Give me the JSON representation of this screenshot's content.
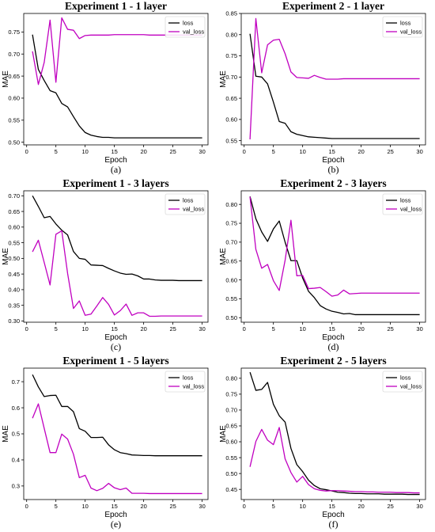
{
  "chart_data": [
    {
      "type": "line",
      "title": "Experiment 1 - 1 layer",
      "xlabel": "Epoch",
      "ylabel": "MAE",
      "caption": "(a)",
      "x_ticks": [
        0,
        5,
        10,
        15,
        20,
        25,
        30
      ],
      "y_ticks": [
        0.5,
        0.55,
        0.6,
        0.65,
        0.7,
        0.75
      ],
      "y_tick_labels": [
        "0.50",
        "0.55",
        "0.60",
        "0.65",
        "0.70",
        "0.75"
      ],
      "xlim": [
        -0.5,
        31
      ],
      "ylim": [
        0.494,
        0.792
      ],
      "legend_position": "top-right",
      "x": [
        1,
        2,
        3,
        4,
        5,
        6,
        7,
        8,
        9,
        10,
        11,
        12,
        13,
        14,
        15,
        16,
        17,
        18,
        19,
        20,
        21,
        22,
        23,
        24,
        25,
        26,
        27,
        28,
        29,
        30
      ],
      "series": [
        {
          "name": "loss",
          "color": "#000000",
          "values": [
            0.744,
            0.665,
            0.64,
            0.617,
            0.612,
            0.588,
            0.58,
            0.558,
            0.537,
            0.522,
            0.516,
            0.513,
            0.511,
            0.511,
            0.51,
            0.51,
            0.51,
            0.51,
            0.51,
            0.51,
            0.51,
            0.51,
            0.51,
            0.51,
            0.51,
            0.51,
            0.51,
            0.51,
            0.51,
            0.51
          ]
        },
        {
          "name": "val_loss",
          "color": "#c000c0",
          "values": [
            0.706,
            0.631,
            0.681,
            0.777,
            0.636,
            0.782,
            0.756,
            0.754,
            0.735,
            0.742,
            0.743,
            0.743,
            0.743,
            0.743,
            0.744,
            0.744,
            0.744,
            0.744,
            0.744,
            0.744,
            0.743,
            0.743,
            0.743,
            0.743,
            0.743,
            0.743,
            0.743,
            0.743,
            0.743,
            0.743
          ]
        }
      ]
    },
    {
      "type": "line",
      "title": "Experiment 2 - 1 layer",
      "xlabel": "Epoch",
      "ylabel": "MAE",
      "caption": "(b)",
      "x_ticks": [
        0,
        5,
        10,
        15,
        20,
        25,
        30
      ],
      "y_ticks": [
        0.55,
        0.6,
        0.65,
        0.7,
        0.75,
        0.8,
        0.85
      ],
      "y_tick_labels": [
        "0.55",
        "0.60",
        "0.65",
        "0.70",
        "0.75",
        "0.80",
        "0.85"
      ],
      "xlim": [
        -0.5,
        31
      ],
      "ylim": [
        0.54,
        0.85
      ],
      "legend_position": "top-right",
      "x": [
        1,
        2,
        3,
        4,
        5,
        6,
        7,
        8,
        9,
        10,
        11,
        12,
        13,
        14,
        15,
        16,
        17,
        18,
        19,
        20,
        21,
        22,
        23,
        24,
        25,
        26,
        27,
        28,
        29,
        30
      ],
      "series": [
        {
          "name": "loss",
          "color": "#000000",
          "values": [
            0.802,
            0.702,
            0.7,
            0.684,
            0.641,
            0.595,
            0.591,
            0.571,
            0.565,
            0.562,
            0.559,
            0.558,
            0.557,
            0.556,
            0.555,
            0.555,
            0.555,
            0.555,
            0.555,
            0.555,
            0.555,
            0.555,
            0.555,
            0.555,
            0.555,
            0.555,
            0.555,
            0.555,
            0.555,
            0.555
          ]
        },
        {
          "name": "val_loss",
          "color": "#c000c0",
          "values": [
            0.553,
            0.838,
            0.71,
            0.776,
            0.787,
            0.789,
            0.755,
            0.712,
            0.699,
            0.698,
            0.697,
            0.704,
            0.699,
            0.695,
            0.695,
            0.695,
            0.696,
            0.696,
            0.696,
            0.696,
            0.696,
            0.696,
            0.696,
            0.696,
            0.696,
            0.696,
            0.696,
            0.696,
            0.696,
            0.696
          ]
        }
      ]
    },
    {
      "type": "line",
      "title": "Experiment 1 - 3 layers",
      "xlabel": "Epoch",
      "ylabel": "MAE",
      "caption": "(c)",
      "x_ticks": [
        0,
        5,
        10,
        15,
        20,
        25,
        30
      ],
      "y_ticks": [
        0.3,
        0.35,
        0.4,
        0.45,
        0.5,
        0.55,
        0.6,
        0.65,
        0.7
      ],
      "y_tick_labels": [
        "0.30",
        "0.35",
        "0.40",
        "0.45",
        "0.50",
        "0.55",
        "0.60",
        "0.65",
        "0.70"
      ],
      "xlim": [
        -0.5,
        31
      ],
      "ylim": [
        0.296,
        0.716
      ],
      "legend_position": "top-right",
      "x": [
        1,
        2,
        3,
        4,
        5,
        6,
        7,
        8,
        9,
        10,
        11,
        12,
        13,
        14,
        15,
        16,
        17,
        18,
        19,
        20,
        21,
        22,
        23,
        24,
        25,
        26,
        27,
        28,
        29,
        30
      ],
      "series": [
        {
          "name": "loss",
          "color": "#000000",
          "values": [
            0.7,
            0.666,
            0.63,
            0.634,
            0.61,
            0.59,
            0.575,
            0.522,
            0.5,
            0.497,
            0.479,
            0.478,
            0.477,
            0.468,
            0.46,
            0.453,
            0.449,
            0.45,
            0.444,
            0.434,
            0.434,
            0.431,
            0.43,
            0.43,
            0.43,
            0.429,
            0.429,
            0.429,
            0.429,
            0.429
          ]
        },
        {
          "name": "val_loss",
          "color": "#c000c0",
          "values": [
            0.521,
            0.558,
            0.487,
            0.415,
            0.577,
            0.588,
            0.452,
            0.34,
            0.364,
            0.318,
            0.322,
            0.348,
            0.375,
            0.353,
            0.319,
            0.333,
            0.354,
            0.318,
            0.326,
            0.326,
            0.315,
            0.315,
            0.316,
            0.316,
            0.316,
            0.316,
            0.316,
            0.316,
            0.316,
            0.316
          ]
        }
      ]
    },
    {
      "type": "line",
      "title": "Experiment 2 - 3 layers",
      "xlabel": "Epoch",
      "ylabel": "MAE",
      "caption": "(d)",
      "x_ticks": [
        0,
        5,
        10,
        15,
        20,
        25,
        30
      ],
      "y_ticks": [
        0.5,
        0.55,
        0.6,
        0.65,
        0.7,
        0.75,
        0.8
      ],
      "y_tick_labels": [
        "0.50",
        "0.55",
        "0.60",
        "0.65",
        "0.70",
        "0.75",
        "0.80"
      ],
      "xlim": [
        -0.5,
        31
      ],
      "ylim": [
        0.488,
        0.836
      ],
      "legend_position": "top-right",
      "x": [
        1,
        2,
        3,
        4,
        5,
        6,
        7,
        8,
        9,
        10,
        11,
        12,
        13,
        14,
        15,
        16,
        17,
        18,
        19,
        20,
        21,
        22,
        23,
        24,
        25,
        26,
        27,
        28,
        29,
        30
      ],
      "series": [
        {
          "name": "loss",
          "color": "#000000",
          "values": [
            0.821,
            0.762,
            0.727,
            0.702,
            0.735,
            0.756,
            0.7,
            0.651,
            0.651,
            0.605,
            0.57,
            0.553,
            0.532,
            0.523,
            0.517,
            0.514,
            0.51,
            0.511,
            0.508,
            0.508,
            0.508,
            0.508,
            0.508,
            0.508,
            0.508,
            0.508,
            0.508,
            0.508,
            0.508,
            0.508
          ]
        },
        {
          "name": "val_loss",
          "color": "#c000c0",
          "values": [
            0.82,
            0.681,
            0.631,
            0.641,
            0.598,
            0.572,
            0.652,
            0.758,
            0.611,
            0.612,
            0.577,
            0.578,
            0.58,
            0.569,
            0.557,
            0.56,
            0.573,
            0.563,
            0.564,
            0.565,
            0.565,
            0.565,
            0.565,
            0.565,
            0.565,
            0.565,
            0.565,
            0.565,
            0.565,
            0.565
          ]
        }
      ]
    },
    {
      "type": "line",
      "title": "Experiment 1 - 5 layers",
      "xlabel": "Epoch",
      "ylabel": "MAE",
      "caption": "(e)",
      "x_ticks": [
        0,
        5,
        10,
        15,
        20,
        25,
        30
      ],
      "y_ticks": [
        0.3,
        0.4,
        0.5,
        0.6,
        0.7
      ],
      "y_tick_labels": [
        "0.3",
        "0.4",
        "0.5",
        "0.6",
        "0.7"
      ],
      "xlim": [
        -0.5,
        31
      ],
      "ylim": [
        0.248,
        0.752
      ],
      "legend_position": "top-right",
      "x": [
        1,
        2,
        3,
        4,
        5,
        6,
        7,
        8,
        9,
        10,
        11,
        12,
        13,
        14,
        15,
        16,
        17,
        18,
        19,
        20,
        21,
        22,
        23,
        24,
        25,
        26,
        27,
        28,
        29,
        30
      ],
      "series": [
        {
          "name": "loss",
          "color": "#000000",
          "values": [
            0.727,
            0.68,
            0.643,
            0.647,
            0.648,
            0.605,
            0.605,
            0.585,
            0.52,
            0.51,
            0.486,
            0.486,
            0.487,
            0.458,
            0.439,
            0.428,
            0.424,
            0.419,
            0.418,
            0.417,
            0.417,
            0.416,
            0.416,
            0.416,
            0.416,
            0.416,
            0.416,
            0.416,
            0.416,
            0.416
          ]
        },
        {
          "name": "val_loss",
          "color": "#c000c0",
          "values": [
            0.56,
            0.615,
            0.521,
            0.428,
            0.428,
            0.499,
            0.48,
            0.422,
            0.332,
            0.341,
            0.292,
            0.282,
            0.291,
            0.31,
            0.293,
            0.286,
            0.292,
            0.272,
            0.272,
            0.272,
            0.271,
            0.271,
            0.271,
            0.271,
            0.271,
            0.271,
            0.271,
            0.271,
            0.271,
            0.271
          ]
        }
      ]
    },
    {
      "type": "line",
      "title": "Experiment 2 - 5 layers",
      "xlabel": "Epoch",
      "ylabel": "MAE",
      "caption": "(f)",
      "x_ticks": [
        0,
        5,
        10,
        15,
        20,
        25,
        30
      ],
      "y_ticks": [
        0.45,
        0.5,
        0.55,
        0.6,
        0.65,
        0.7,
        0.75,
        0.8
      ],
      "y_tick_labels": [
        "0.45",
        "0.50",
        "0.55",
        "0.60",
        "0.65",
        "0.70",
        "0.75",
        "0.80"
      ],
      "xlim": [
        -0.5,
        31
      ],
      "ylim": [
        0.418,
        0.832
      ],
      "legend_position": "top-right",
      "x": [
        1,
        2,
        3,
        4,
        5,
        6,
        7,
        8,
        9,
        10,
        11,
        12,
        13,
        14,
        15,
        16,
        17,
        18,
        19,
        20,
        21,
        22,
        23,
        24,
        25,
        26,
        27,
        28,
        29,
        30
      ],
      "series": [
        {
          "name": "loss",
          "color": "#000000",
          "values": [
            0.819,
            0.762,
            0.765,
            0.787,
            0.718,
            0.682,
            0.662,
            0.579,
            0.528,
            0.506,
            0.479,
            0.462,
            0.452,
            0.449,
            0.445,
            0.441,
            0.44,
            0.438,
            0.437,
            0.437,
            0.436,
            0.436,
            0.436,
            0.435,
            0.435,
            0.435,
            0.435,
            0.434,
            0.434,
            0.434
          ]
        },
        {
          "name": "val_loss",
          "color": "#c000c0",
          "values": [
            0.521,
            0.601,
            0.639,
            0.605,
            0.591,
            0.645,
            0.546,
            0.503,
            0.473,
            0.491,
            0.465,
            0.452,
            0.447,
            0.445,
            0.446,
            0.446,
            0.445,
            0.444,
            0.443,
            0.443,
            0.442,
            0.442,
            0.441,
            0.441,
            0.441,
            0.44,
            0.44,
            0.44,
            0.439,
            0.439
          ]
        }
      ]
    }
  ]
}
